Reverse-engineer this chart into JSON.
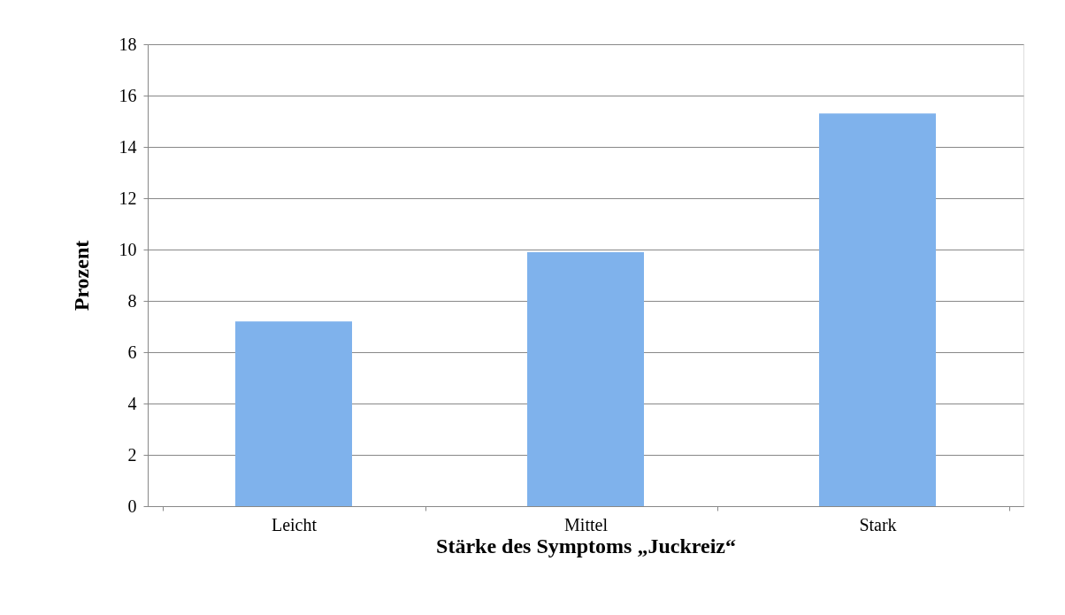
{
  "chart_data": {
    "type": "bar",
    "categories": [
      "Leicht",
      "Mittel",
      "Stark"
    ],
    "series": [
      {
        "color": "#7fb2ec",
        "values": [
          7.2,
          9.9,
          15.3
        ]
      }
    ],
    "xlabel": "Stärke des Symptoms „Juckreiz“",
    "ylabel": "Prozent",
    "ylim": [
      0,
      18
    ],
    "yticks": [
      0,
      2,
      4,
      6,
      8,
      10,
      12,
      14,
      16,
      18
    ],
    "grid": "y",
    "legend": false
  }
}
